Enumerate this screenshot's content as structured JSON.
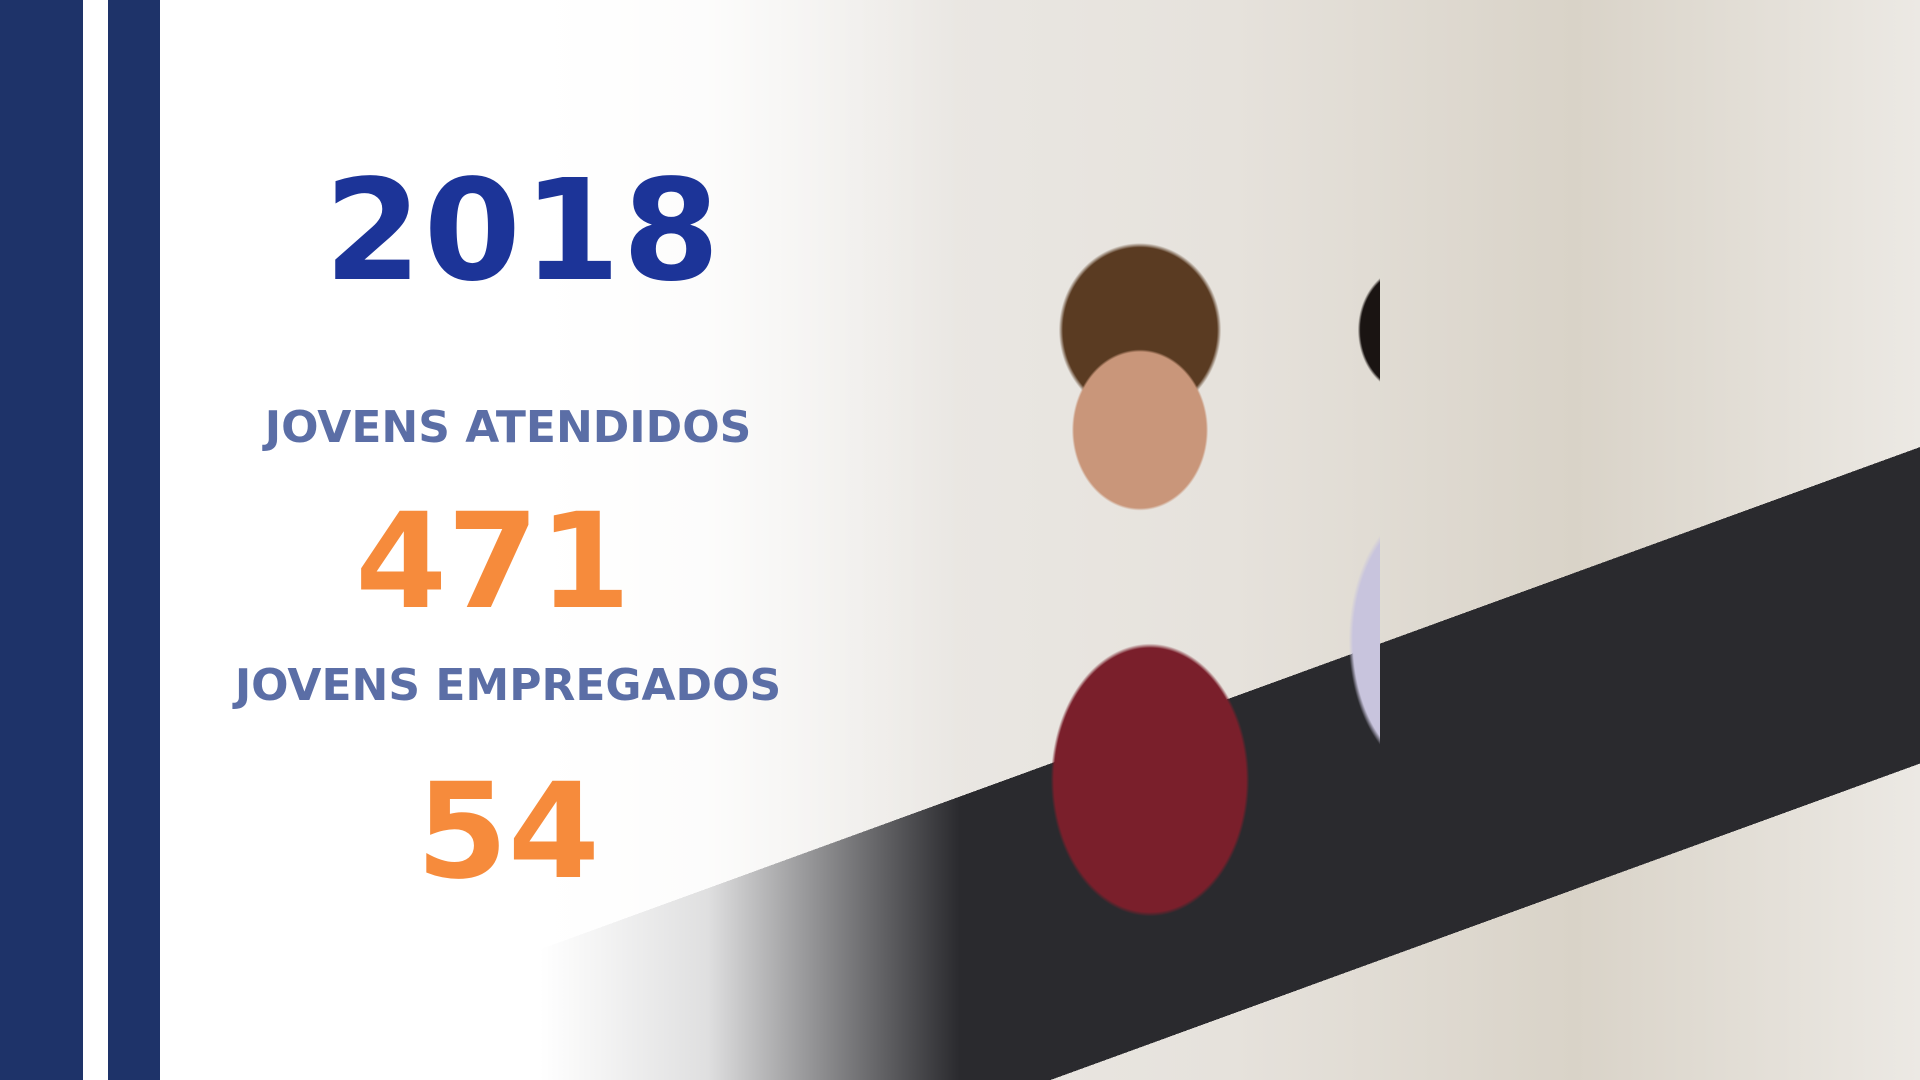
{
  "year": "2018",
  "stats": [
    {
      "label": "JOVENS ATENDIDOS",
      "value": "471"
    },
    {
      "label": "JOVENS EMPREGADOS",
      "value": "54"
    }
  ],
  "colors": {
    "stripe": "#1e3369",
    "year": "#1c3498",
    "label": "#5b6ea6",
    "number": "#f68b3c"
  }
}
